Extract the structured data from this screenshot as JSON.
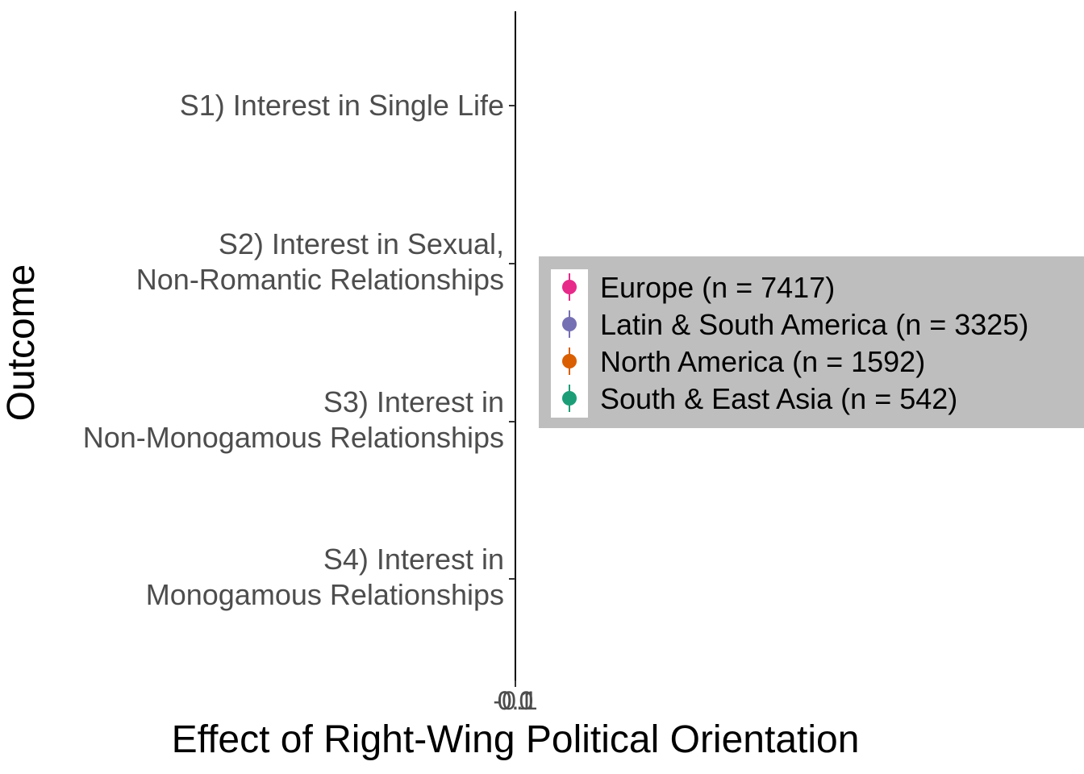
{
  "chart_data": {
    "type": "scatter",
    "xlabel": "Effect of Right-Wing Political Orientation",
    "ylabel": "Outcome",
    "x_tick_labels": [
      "-0.1",
      "0.0",
      "0.1"
    ],
    "categories": [
      [
        "S1) Interest in Single Life"
      ],
      [
        "S2) Interest in Sexual,",
        "Non-Romantic Relationships"
      ],
      [
        "S3) Interest in",
        "Non-Monogamous Relationships"
      ],
      [
        "S4) Interest in",
        "Monogamous Relationships"
      ]
    ],
    "legend": {
      "placement": "right",
      "background": "#bebebe",
      "entries": [
        {
          "label": "Europe (n = 7417)",
          "color": "#e7298a"
        },
        {
          "label": "Latin & South America (n = 3325)",
          "color": "#7570b3"
        },
        {
          "label": "North America (n = 1592)",
          "color": "#d95f02"
        },
        {
          "label": "South & East Asia (n = 542)",
          "color": "#1b9e77"
        }
      ]
    },
    "series": [],
    "grid": false
  }
}
